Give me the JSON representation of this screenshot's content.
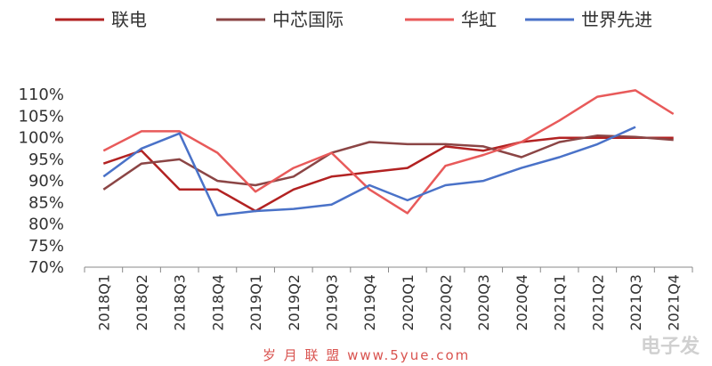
{
  "chart_data": {
    "type": "line",
    "title": "",
    "xlabel": "",
    "ylabel": "",
    "ylim": [
      70,
      115
    ],
    "yticks": [
      70,
      75,
      80,
      85,
      90,
      95,
      100,
      105,
      110
    ],
    "y_tick_labels": [
      "70%",
      "75%",
      "80%",
      "85%",
      "90%",
      "95%",
      "100%",
      "105%",
      "110%"
    ],
    "categories": [
      "2018Q1",
      "2018Q2",
      "2018Q3",
      "2018Q4",
      "2019Q1",
      "2019Q2",
      "2019Q3",
      "2019Q4",
      "2020Q1",
      "2020Q2",
      "2020Q3",
      "2020Q4",
      "2021Q1",
      "2021Q2",
      "2021Q3",
      "2021Q4"
    ],
    "legend_position": "top",
    "grid": false,
    "series": [
      {
        "name": "联电",
        "color": "#b22222",
        "values": [
          94,
          97,
          88,
          88,
          83,
          88,
          91,
          92,
          93,
          98,
          97,
          99,
          100,
          100,
          100,
          100
        ]
      },
      {
        "name": "中芯国际",
        "color": "#8b4545",
        "values": [
          88,
          94,
          95,
          90,
          89,
          91,
          96.5,
          99,
          98.5,
          98.5,
          98,
          95.5,
          99,
          100.5,
          100.2,
          99.5
        ]
      },
      {
        "name": "华虹",
        "color": "#e85a5a",
        "values": [
          97,
          101.5,
          101.5,
          96.5,
          87.5,
          93,
          96.5,
          88,
          82.5,
          93.5,
          96,
          99,
          104,
          109.5,
          111,
          105.5
        ]
      },
      {
        "name": "世界先进",
        "color": "#4a72c8",
        "values": [
          91,
          97.5,
          101,
          82,
          83,
          83.5,
          84.5,
          89,
          85.5,
          89,
          90,
          93,
          95.5,
          98.5,
          102.5,
          null
        ]
      }
    ]
  },
  "watermark": "岁 月 联 盟  www.5yue.com",
  "corner_logo": "电子发"
}
